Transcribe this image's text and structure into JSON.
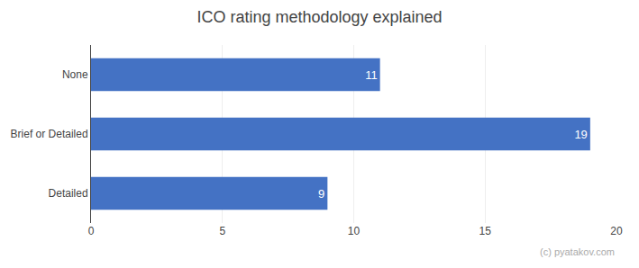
{
  "chart_data": {
    "type": "bar",
    "orientation": "horizontal",
    "title": "ICO rating methodology explained",
    "categories": [
      "Detailed",
      "Brief or Detailed",
      "None"
    ],
    "values": [
      9,
      19,
      11
    ],
    "color": "#4472C4",
    "xlim": [
      0,
      20
    ],
    "xticks": [
      0,
      5,
      10,
      15,
      20
    ],
    "grid": true,
    "data_labels": true,
    "annotations": [
      "(c) pyatakov.com"
    ]
  }
}
